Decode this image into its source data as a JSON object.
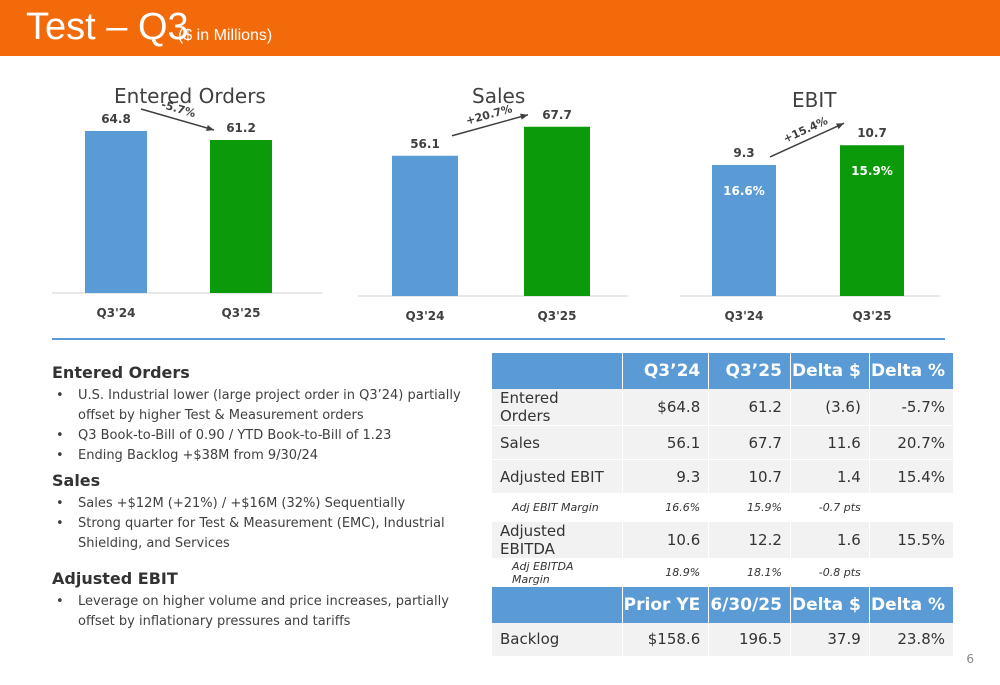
{
  "header": {
    "title": "Test – Q3",
    "subtitle": "($ in Millions)"
  },
  "chart_data": [
    {
      "type": "bar",
      "title": "Entered Orders",
      "categories": [
        "Q3'24",
        "Q3'25"
      ],
      "values": [
        64.8,
        61.2
      ],
      "value_labels": [
        "64.8",
        "61.2"
      ],
      "change_label": "-5.7%",
      "colors": [
        "#5b9bd5",
        "#0a9a0a"
      ]
    },
    {
      "type": "bar",
      "title": "Sales",
      "categories": [
        "Q3'24",
        "Q3'25"
      ],
      "values": [
        56.1,
        67.7
      ],
      "value_labels": [
        "56.1",
        "67.7"
      ],
      "change_label": "+20.7%",
      "colors": [
        "#5b9bd5",
        "#0a9a0a"
      ]
    },
    {
      "type": "bar",
      "title": "EBIT",
      "categories": [
        "Q3'24",
        "Q3'25"
      ],
      "values": [
        9.3,
        10.7
      ],
      "value_labels": [
        "9.3",
        "10.7"
      ],
      "inner_labels": [
        "16.6%",
        "15.9%"
      ],
      "change_label": "+15.4%",
      "colors": [
        "#5b9bd5",
        "#0a9a0a"
      ]
    }
  ],
  "notes": [
    {
      "heading": "Entered Orders",
      "bullets": [
        "U.S. Industrial lower (large project order in Q3’24) partially offset by higher Test & Measurement orders",
        "Q3 Book-to-Bill of 0.90 / YTD Book-to-Bill of 1.23",
        "Ending Backlog +$38M from 9/30/24"
      ]
    },
    {
      "heading": "Sales",
      "bullets": [
        "Sales +$12M (+21%) / +$16M (32%) Sequentially",
        "Strong quarter for Test & Measurement (EMC), Industrial Shielding, and Services"
      ]
    },
    {
      "heading": "Adjusted EBIT",
      "bullets": [
        "Leverage on higher volume and price increases, partially offset by inflationary pressures and tariffs"
      ]
    }
  ],
  "table": {
    "headers": [
      "",
      "Q3’24",
      "Q3’25",
      "Delta $",
      "Delta %"
    ],
    "rows": [
      {
        "cells": [
          "Entered Orders",
          "$64.8",
          "61.2",
          "(3.6)",
          "-5.7%"
        ],
        "sub": false
      },
      {
        "cells": [
          "Sales",
          "56.1",
          "67.7",
          "11.6",
          "20.7%"
        ],
        "sub": false
      },
      {
        "cells": [
          "Adjusted EBIT",
          "9.3",
          "10.7",
          "1.4",
          "15.4%"
        ],
        "sub": false
      },
      {
        "cells": [
          "Adj EBIT Margin",
          "16.6%",
          "15.9%",
          "-0.7 pts",
          ""
        ],
        "sub": true
      },
      {
        "cells": [
          "Adjusted EBITDA",
          "10.6",
          "12.2",
          "1.6",
          "15.5%"
        ],
        "sub": false
      },
      {
        "cells": [
          "Adj EBITDA Margin",
          "18.9%",
          "18.1%",
          "-0.8 pts",
          ""
        ],
        "sub": true
      }
    ],
    "headers2": [
      "",
      "Prior YE",
      "6/30/25",
      "Delta $",
      "Delta %"
    ],
    "rows2": [
      {
        "cells": [
          "Backlog",
          "$158.6",
          "196.5",
          "37.9",
          "23.8%"
        ],
        "sub": false
      }
    ]
  },
  "page_number": "6"
}
